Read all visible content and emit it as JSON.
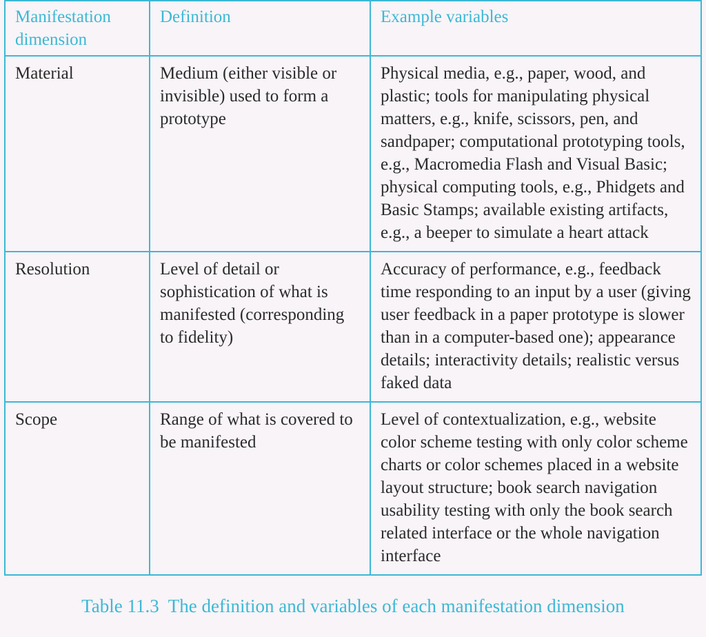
{
  "table": {
    "border_color": "#3CB8D4",
    "header_text_color": "#3CB8D4",
    "body_text_color": "#2b2b2b",
    "background_color": "#f8f4f8",
    "font_family": "serif",
    "header_fontsize_pt": 19,
    "body_fontsize_pt": 19,
    "columns": {
      "dimension": "Manifestation dimension",
      "definition": "Definition",
      "examples": "Example variables"
    },
    "rows": [
      {
        "dimension": "Material",
        "definition": "Medium (either visible or invisible) used to form a prototype",
        "examples": "Physical media, e.g., paper, wood, and plastic; tools for manipulating physical matters, e.g., knife, scissors, pen, and sandpaper; computational prototyping tools, e.g., Macromedia Flash and Visual Basic; physical computing tools, e.g., Phidgets and Basic Stamps; available existing artifacts, e.g., a beeper to simulate a heart attack"
      },
      {
        "dimension": "Resolution",
        "definition": "Level of detail or sophistication of what is manifested (corresponding to fidelity)",
        "examples": "Accuracy of performance, e.g., feedback time responding to an input by a user (giving user feedback in a paper prototype is slower than in a computer-based one); appearance details; interactivity details; realistic versus faked data"
      },
      {
        "dimension": "Scope",
        "definition": "Range of what is covered to be manifested",
        "examples": "Level of contextualization, e.g., website color scheme testing with only color scheme charts or color schemes placed in a website layout structure; book search navigation usability testing with only the book search related interface or the whole navigation interface"
      }
    ]
  },
  "caption": {
    "label": "Table 11.3",
    "text": "The definition and variables of each manifestation dimension",
    "color": "#3CB8D4",
    "fontsize_pt": 20
  }
}
